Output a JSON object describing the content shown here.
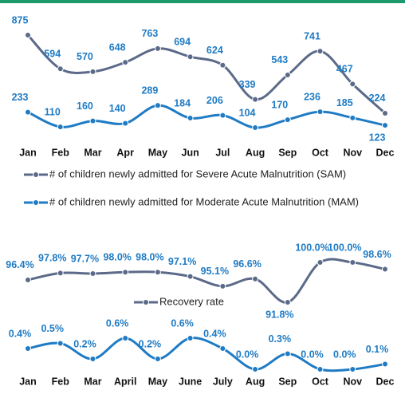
{
  "chart_data": [
    {
      "type": "line",
      "categories": [
        "Jan",
        "Feb",
        "Mar",
        "Apr",
        "May",
        "Jun",
        "Jul",
        "Aug",
        "Sep",
        "Oct",
        "Nov",
        "Dec"
      ],
      "series": [
        {
          "name": "# of children newly admitted for Severe Acute Malnutrition (SAM)",
          "color": "#5b6a89",
          "values": [
            875,
            594,
            570,
            648,
            763,
            694,
            624,
            339,
            543,
            741,
            467,
            224
          ]
        },
        {
          "name": "# of children newly admitted for Moderate Acute Malnutrition (MAM)",
          "color": "#1f7bc4",
          "values": [
            233,
            110,
            160,
            140,
            289,
            184,
            206,
            104,
            170,
            236,
            185,
            123
          ]
        }
      ]
    },
    {
      "type": "line",
      "categories": [
        "Jan",
        "Feb",
        "Mar",
        "April",
        "May",
        "June",
        "July",
        "Aug",
        "Sep",
        "Oct",
        "Nov",
        "Dec"
      ],
      "series": [
        {
          "name": "Recovery rate",
          "color": "#5b6a89",
          "values": [
            96.4,
            97.8,
            97.7,
            98.0,
            98.0,
            97.1,
            95.1,
            96.6,
            91.8,
            100.0,
            100.0,
            98.6
          ],
          "value_labels": [
            "96.4%",
            "97.8%",
            "97.7%",
            "98.0%",
            "98.0%",
            "97.1%",
            "95.1%",
            "96.6%",
            "91.8%",
            "100.0%",
            "100.0%",
            "98.6%"
          ]
        },
        {
          "color": "#1f7bc4",
          "values": [
            0.4,
            0.5,
            0.2,
            0.6,
            0.2,
            0.6,
            0.4,
            0.0,
            0.3,
            0.0,
            0.0,
            0.1
          ],
          "value_labels": [
            "0.4%",
            "0.5%",
            "0.2%",
            "0.6%",
            "0.2%",
            "0.6%",
            "0.4%",
            "0.0%",
            "0.3%",
            "0.0%",
            "0.0%",
            "0.1%"
          ]
        }
      ]
    }
  ]
}
